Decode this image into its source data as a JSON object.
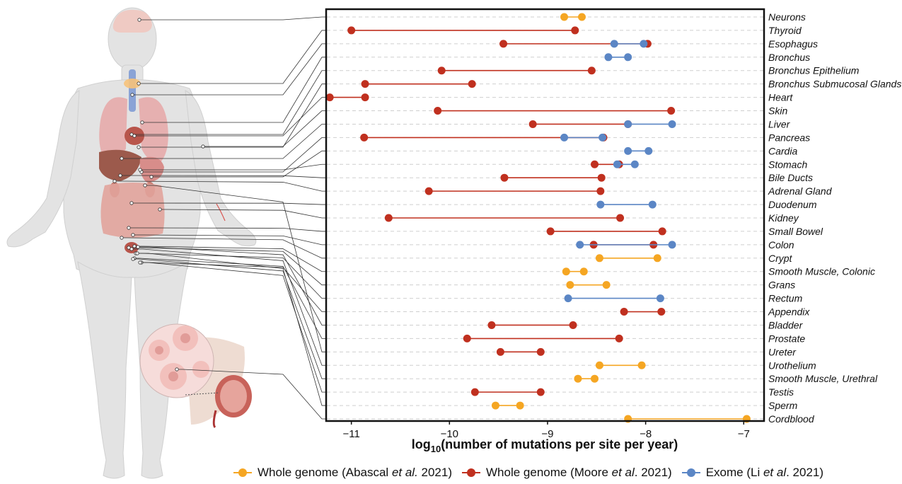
{
  "chart_data": {
    "type": "dumbbell",
    "xlabel_prefix": "log",
    "xlabel_sub": "10",
    "xlabel_rest": "(number of mutations per site per year)",
    "xlim": [
      -11.25,
      -6.8
    ],
    "xticks": [
      -11,
      -10,
      -9,
      -8,
      -7
    ],
    "xtick_labels": [
      "−11",
      "−10",
      "−9",
      "−8",
      "−7"
    ],
    "grid": "horizontal dashed",
    "legend_position": "bottom",
    "categories": [
      "Neurons",
      "Thyroid",
      "Esophagus",
      "Bronchus",
      "Bronchus Epithelium",
      "Bronchus Submucosal Glands",
      "Heart",
      "Skin",
      "Liver",
      "Pancreas",
      "Cardia",
      "Stomach",
      "Bile Ducts",
      "Adrenal Gland",
      "Duodenum",
      "Kidney",
      "Small Bowel",
      "Colon",
      "Crypt",
      "Smooth Muscle, Colonic",
      "Grans",
      "Rectum",
      "Appendix",
      "Bladder",
      "Prostate",
      "Ureter",
      "Urothelium",
      "Smooth Muscle, Urethral",
      "Testis",
      "Sperm",
      "Cordblood"
    ],
    "series": [
      {
        "name_pre": "Whole genome (Abascal ",
        "name_em": "et al.",
        "name_post": " 2021)",
        "color": "#f5a623",
        "ranges": [
          {
            "category": "Neurons",
            "low": -8.83,
            "high": -8.65
          },
          {
            "category": "Crypt",
            "low": -8.47,
            "high": -7.88
          },
          {
            "category": "Smooth Muscle, Colonic",
            "low": -8.81,
            "high": -8.63
          },
          {
            "category": "Grans",
            "low": -8.77,
            "high": -8.4
          },
          {
            "category": "Urothelium",
            "low": -8.47,
            "high": -8.04
          },
          {
            "category": "Smooth Muscle, Urethral",
            "low": -8.69,
            "high": -8.52
          },
          {
            "category": "Sperm",
            "low": -9.53,
            "high": -9.28
          },
          {
            "category": "Cordblood",
            "low": -8.18,
            "high": -6.97
          }
        ]
      },
      {
        "name_pre": "Whole genome (Moore ",
        "name_em": "et al",
        "name_post": ". 2021)",
        "color": "#c0301f",
        "ranges": [
          {
            "category": "Thyroid",
            "low": -11.0,
            "high": -8.72
          },
          {
            "category": "Esophagus",
            "low": -9.45,
            "high": -7.98
          },
          {
            "category": "Bronchus Epithelium",
            "low": -10.08,
            "high": -8.55
          },
          {
            "category": "Bronchus Submucosal Glands",
            "low": -10.86,
            "high": -9.77
          },
          {
            "category": "Heart",
            "low": -11.22,
            "high": -10.86
          },
          {
            "category": "Skin",
            "low": -10.12,
            "high": -7.74
          },
          {
            "category": "Liver",
            "low": -9.15,
            "high": -8.18
          },
          {
            "category": "Pancreas",
            "low": -10.87,
            "high": -8.43
          },
          {
            "category": "Stomach",
            "low": -8.52,
            "high": -8.27
          },
          {
            "category": "Bile Ducts",
            "low": -9.44,
            "high": -8.45
          },
          {
            "category": "Adrenal Gland",
            "low": -10.21,
            "high": -8.46
          },
          {
            "category": "Kidney",
            "low": -10.62,
            "high": -8.26
          },
          {
            "category": "Small Bowel",
            "low": -8.97,
            "high": -7.83
          },
          {
            "category": "Colon",
            "low": -8.53,
            "high": -7.92
          },
          {
            "category": "Appendix",
            "low": -8.22,
            "high": -7.84
          },
          {
            "category": "Bladder",
            "low": -9.57,
            "high": -8.74
          },
          {
            "category": "Prostate",
            "low": -9.82,
            "high": -8.27
          },
          {
            "category": "Ureter",
            "low": -9.48,
            "high": -9.07
          },
          {
            "category": "Testis",
            "low": -9.74,
            "high": -9.07
          }
        ]
      },
      {
        "name_pre": "Exome (Li ",
        "name_em": "et al",
        "name_post": ". 2021)",
        "color": "#5b86c5",
        "ranges": [
          {
            "category": "Esophagus",
            "low": -8.32,
            "high": -8.02
          },
          {
            "category": "Bronchus",
            "low": -8.38,
            "high": -8.18
          },
          {
            "category": "Liver",
            "low": -8.18,
            "high": -7.73
          },
          {
            "category": "Pancreas",
            "low": -8.83,
            "high": -8.44
          },
          {
            "category": "Cardia",
            "low": -8.18,
            "high": -7.97
          },
          {
            "category": "Stomach",
            "low": -8.29,
            "high": -8.11
          },
          {
            "category": "Duodenum",
            "low": -8.46,
            "high": -7.93
          },
          {
            "category": "Colon",
            "low": -8.67,
            "high": -7.73
          },
          {
            "category": "Rectum",
            "low": -8.79,
            "high": -7.85
          }
        ]
      }
    ]
  },
  "illustration": {
    "icons": [
      "human-body-anatomy-icon",
      "brain-icon",
      "thyroid-icon",
      "lungs-icon",
      "heart-icon",
      "liver-icon",
      "stomach-icon",
      "kidney-icon",
      "intestine-icon",
      "bladder-icon",
      "skin-icon",
      "pregnant-womb-icon",
      "cells-zoom-icon"
    ]
  }
}
